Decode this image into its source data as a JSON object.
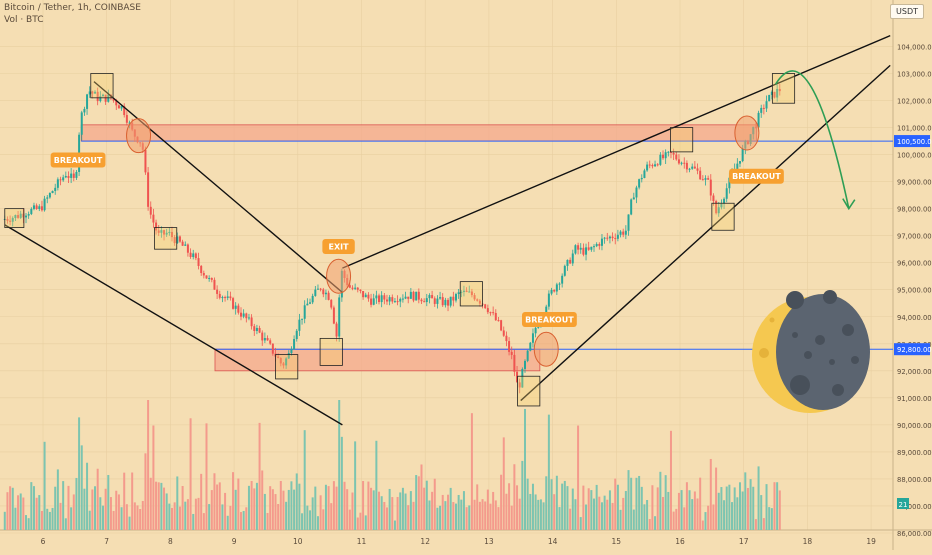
{
  "header": {
    "title": "Bitcoin / Tether, 1h, COINBASE",
    "volume_label": "Vol · BTC",
    "currency": "USDT"
  },
  "colors": {
    "background": "#f5deb3",
    "up": "#26a69a",
    "down": "#ef5350",
    "zone_fill": "#f4a88c",
    "zone_stroke": "#d9534f",
    "trendline": "#111111",
    "level": "#2962ff",
    "callout": "#f7a030",
    "projection": "#2e9e55",
    "moon_dark": "#5b6470",
    "moon_light": "#f5c850"
  },
  "chart_data": {
    "type": "candlestick",
    "y_axis": {
      "range": [
        86000,
        105000
      ],
      "ticks": [
        "86,000.00",
        "87,000.00",
        "88,000.00",
        "89,000.00",
        "90,000.00",
        "91,000.00",
        "92,000.00",
        "93,000.00",
        "94,000.00",
        "95,000.00",
        "96,000.00",
        "97,000.00",
        "98,000.00",
        "99,000.00",
        "100,000.00",
        "101,000.00",
        "102,000.00",
        "103,000.00",
        "104,000.00"
      ]
    },
    "x_axis": {
      "ticks": [
        "6",
        "7",
        "8",
        "9",
        "10",
        "11",
        "12",
        "13",
        "14",
        "15",
        "16",
        "17",
        "18",
        "19"
      ]
    },
    "price_tags": [
      {
        "value": 100500,
        "label": "100,500.00"
      },
      {
        "value": 92800,
        "label": "92,800.00"
      }
    ],
    "volume_tag": "21",
    "zones": [
      {
        "from_day": 6.6,
        "to_day": 17.2,
        "low": 100500,
        "high": 101100
      },
      {
        "from_day": 8.7,
        "to_day": 13.8,
        "low": 92000,
        "high": 92800
      }
    ],
    "horizontal_levels": [
      100500,
      92800
    ],
    "trendlines": [
      {
        "from": [
          5.4,
          97400
        ],
        "to": [
          10.7,
          90000
        ]
      },
      {
        "from": [
          6.8,
          102700
        ],
        "to": [
          10.7,
          94900
        ]
      },
      {
        "from": [
          10.7,
          95800
        ],
        "to": [
          19.3,
          104400
        ]
      },
      {
        "from": [
          13.5,
          90900
        ],
        "to": [
          19.3,
          103300
        ]
      }
    ],
    "price_path": [
      [
        5.4,
        97600
      ],
      [
        5.6,
        97700
      ],
      [
        5.8,
        97900
      ],
      [
        6.0,
        98000
      ],
      [
        6.2,
        98700
      ],
      [
        6.4,
        99300
      ],
      [
        6.55,
        99000
      ],
      [
        6.62,
        101200
      ],
      [
        6.75,
        102400
      ],
      [
        6.9,
        102100
      ],
      [
        7.1,
        102100
      ],
      [
        7.3,
        101700
      ],
      [
        7.45,
        100800
      ],
      [
        7.6,
        100400
      ],
      [
        7.7,
        98000
      ],
      [
        7.85,
        97000
      ],
      [
        8.0,
        97100
      ],
      [
        8.2,
        96700
      ],
      [
        8.4,
        96200
      ],
      [
        8.6,
        95500
      ],
      [
        8.8,
        94900
      ],
      [
        9.0,
        94500
      ],
      [
        9.2,
        94000
      ],
      [
        9.4,
        93500
      ],
      [
        9.6,
        92900
      ],
      [
        9.8,
        92200
      ],
      [
        9.9,
        92600
      ],
      [
        10.0,
        93500
      ],
      [
        10.2,
        94500
      ],
      [
        10.4,
        95100
      ],
      [
        10.55,
        94700
      ],
      [
        10.65,
        93300
      ],
      [
        10.72,
        95700
      ],
      [
        10.85,
        95100
      ],
      [
        11.0,
        94900
      ],
      [
        11.2,
        94600
      ],
      [
        11.5,
        94700
      ],
      [
        11.8,
        94800
      ],
      [
        12.0,
        94700
      ],
      [
        12.2,
        94600
      ],
      [
        12.4,
        94500
      ],
      [
        12.6,
        94900
      ],
      [
        12.8,
        94800
      ],
      [
        13.0,
        94400
      ],
      [
        13.2,
        93700
      ],
      [
        13.4,
        92500
      ],
      [
        13.5,
        91300
      ],
      [
        13.6,
        92200
      ],
      [
        13.8,
        93800
      ],
      [
        14.0,
        94800
      ],
      [
        14.2,
        95600
      ],
      [
        14.4,
        96500
      ],
      [
        14.6,
        96400
      ],
      [
        14.8,
        96800
      ],
      [
        15.0,
        97000
      ],
      [
        15.2,
        97200
      ],
      [
        15.3,
        98500
      ],
      [
        15.5,
        99500
      ],
      [
        15.7,
        99800
      ],
      [
        15.9,
        100000
      ],
      [
        16.1,
        99700
      ],
      [
        16.3,
        99400
      ],
      [
        16.5,
        98900
      ],
      [
        16.6,
        97800
      ],
      [
        16.8,
        98900
      ],
      [
        17.0,
        100000
      ],
      [
        17.2,
        101000
      ],
      [
        17.4,
        102000
      ],
      [
        17.6,
        102400
      ]
    ],
    "annotations": [
      {
        "text": "BREAKOUT",
        "day": 6.55,
        "price": 99800
      },
      {
        "text": "BREAKOUT",
        "day": 17.2,
        "price": 99200
      },
      {
        "text": "BREAKOUT",
        "day": 13.95,
        "price": 93900
      },
      {
        "text": "EXIT",
        "day": 10.64,
        "price": 96600
      }
    ],
    "highlight_boxes": [
      [
        5.4,
        97300,
        5.7,
        98000
      ],
      [
        6.75,
        102100,
        7.1,
        103000
      ],
      [
        7.75,
        96500,
        8.1,
        97300
      ],
      [
        9.65,
        91700,
        10.0,
        92600
      ],
      [
        10.35,
        92200,
        10.7,
        93200
      ],
      [
        12.55,
        94400,
        12.9,
        95300
      ],
      [
        13.45,
        90700,
        13.8,
        91800
      ],
      [
        15.85,
        100100,
        16.2,
        101000
      ],
      [
        16.5,
        97200,
        16.85,
        98200
      ],
      [
        17.45,
        101900,
        17.8,
        103000
      ]
    ],
    "highlight_circles": [
      [
        7.5,
        100700
      ],
      [
        10.64,
        95500
      ],
      [
        13.9,
        92800
      ],
      [
        17.05,
        100800
      ]
    ],
    "projection": {
      "from": [
        17.5,
        102600
      ],
      "peak": [
        18.05,
        103200
      ],
      "to": [
        18.65,
        98000
      ]
    }
  }
}
